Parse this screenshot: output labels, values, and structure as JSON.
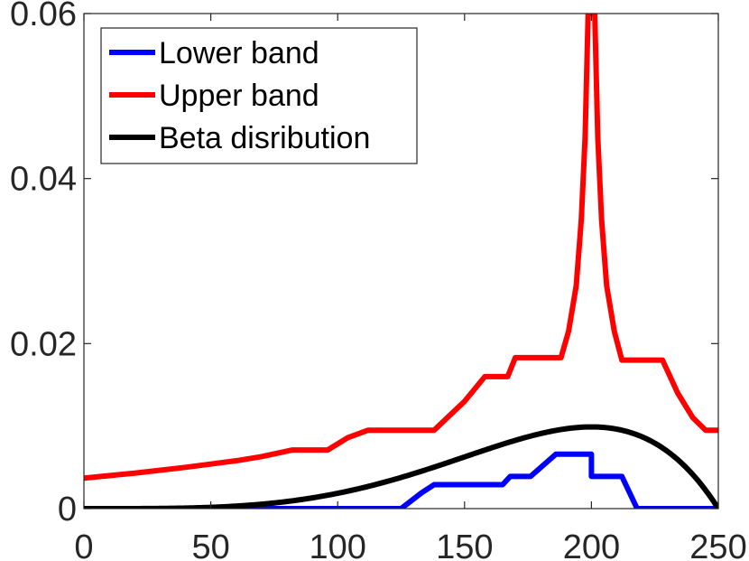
{
  "chart_data": {
    "type": "line",
    "title": "",
    "xlabel": "",
    "ylabel": "",
    "xlim": [
      0,
      250
    ],
    "ylim": [
      0,
      0.06
    ],
    "xticks": [
      0,
      50,
      100,
      150,
      200,
      250
    ],
    "xtick_labels": [
      "0",
      "50",
      "100",
      "150",
      "200",
      "250"
    ],
    "yticks": [
      0,
      0.02,
      0.04,
      0.06
    ],
    "ytick_labels": [
      "0",
      "0.02",
      "0.04",
      "0.06"
    ],
    "grid": false,
    "legend_position": "top-left",
    "series": [
      {
        "name": "Lower band",
        "color": "#0000ff",
        "x": [
          0,
          125,
          133,
          138,
          165,
          168,
          176,
          186,
          195,
          200,
          200,
          212,
          218,
          250
        ],
        "y": [
          0,
          0,
          0.0019,
          0.0029,
          0.0029,
          0.0039,
          0.0039,
          0.0066,
          0.0066,
          0.0066,
          0.0039,
          0.0039,
          0,
          0
        ]
      },
      {
        "name": "Upper band",
        "color": "#ff0000",
        "x": [
          0,
          20,
          40,
          60,
          70,
          82,
          96,
          104,
          112,
          138,
          150,
          158,
          167,
          170,
          188,
          191,
          194,
          196,
          197.5,
          198.7,
          201.3,
          202.5,
          204,
          206,
          209,
          212,
          228,
          234,
          240,
          245,
          250
        ],
        "y": [
          0.0037,
          0.0043,
          0.005,
          0.0058,
          0.0063,
          0.0071,
          0.0071,
          0.0086,
          0.0095,
          0.0095,
          0.013,
          0.016,
          0.016,
          0.0183,
          0.0183,
          0.0215,
          0.027,
          0.035,
          0.045,
          0.06,
          0.06,
          0.045,
          0.035,
          0.027,
          0.0215,
          0.018,
          0.018,
          0.014,
          0.011,
          0.0095,
          0.0095
        ]
      },
      {
        "name": "Beta disribution",
        "color": "#000000",
        "function": "beta",
        "peak_x": 200,
        "peak_y": 0.0099,
        "x_end": 250
      }
    ]
  }
}
